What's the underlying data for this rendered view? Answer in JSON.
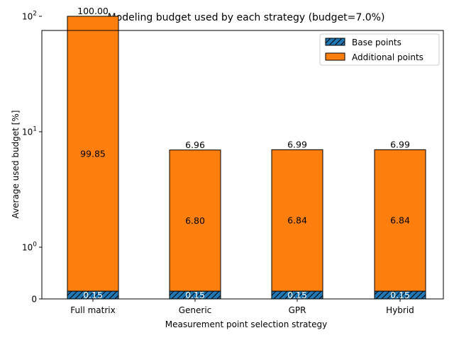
{
  "chart_data": {
    "type": "bar",
    "stacked": true,
    "title": "Modeling budget used by each strategy (budget=7.0%)",
    "xlabel": "Measurement point selection strategy",
    "ylabel": "Average used budget [%]",
    "y_scale": "symlog",
    "ylim": [
      0,
      130
    ],
    "y_ticks": [
      {
        "value": 0,
        "base": "0",
        "exp": ""
      },
      {
        "value": 1,
        "base": "10",
        "exp": "0"
      },
      {
        "value": 10,
        "base": "10",
        "exp": "1"
      },
      {
        "value": 100,
        "base": "10",
        "exp": "2"
      }
    ],
    "categories": [
      "Full matrix",
      "Generic",
      "GPR",
      "Hybrid"
    ],
    "series": [
      {
        "name": "Base points",
        "color": "#1f77b4",
        "hatch": true,
        "values": [
          0.15,
          0.15,
          0.15,
          0.15
        ],
        "labels": [
          "0.15",
          "0.15",
          "0.15",
          "0.15"
        ]
      },
      {
        "name": "Additional points",
        "color": "#ff7f0e",
        "hatch": false,
        "values": [
          99.85,
          6.8,
          6.84,
          6.84
        ],
        "labels": [
          "99.85",
          "6.80",
          "6.84",
          "6.84"
        ]
      }
    ],
    "totals": [
      "100.00",
      "6.96",
      "6.99",
      "6.99"
    ],
    "legend": "top-right",
    "grid": false
  }
}
